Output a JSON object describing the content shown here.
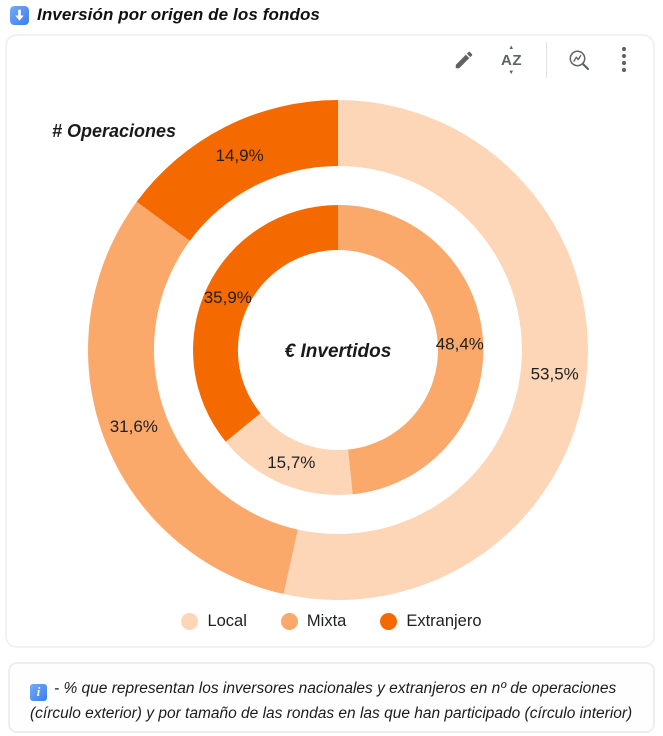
{
  "header": {
    "title": "Inversión por origen de los fondos",
    "icon": "blue-down-arrow"
  },
  "toolbar": {
    "edit_icon": "pencil-icon",
    "sort_icon_letters": "AZ",
    "zoom_icon": "magnifier-chart-icon",
    "more_icon": "kebab-dots-icon",
    "icon_color": "#5f6368"
  },
  "chart_data": {
    "type": "pie",
    "subtype": "nested-donut",
    "start_angle_deg": 0,
    "direction": "clockwise",
    "categories": [
      "Local",
      "Mixta",
      "Extranjero"
    ],
    "colors": {
      "Local": "#FDD6B7",
      "Mixta": "#FBA86B",
      "Extranjero": "#F56A00"
    },
    "label_color": "#212121",
    "rings": [
      {
        "name": "# Operaciones",
        "position": "outer",
        "segments": [
          {
            "category": "Local",
            "value": 53.5,
            "label": "53,5%"
          },
          {
            "category": "Mixta",
            "value": 31.6,
            "label": "31,6%"
          },
          {
            "category": "Extranjero",
            "value": 14.9,
            "label": "14,9%"
          }
        ]
      },
      {
        "name": "€ Invertidos",
        "position": "inner",
        "segments": [
          {
            "category": "Mixta",
            "value": 48.4,
            "label": "48,4%"
          },
          {
            "category": "Local",
            "value": 15.7,
            "label": "15,7%"
          },
          {
            "category": "Extranjero",
            "value": 35.9,
            "label": "35,9%"
          }
        ]
      }
    ],
    "legend_position": "bottom",
    "grid": false
  },
  "legend": {
    "items": [
      {
        "label": "Local",
        "color": "#FDD6B7"
      },
      {
        "label": "Mixta",
        "color": "#FBA86B"
      },
      {
        "label": "Extranjero",
        "color": "#F56A00"
      }
    ]
  },
  "footnote": {
    "icon": "blue-info-i",
    "line1": "- % que representan los inversores nacionales y extranjeros en nº de operaciones",
    "line2": "(círculo exterior) y por tamaño de las rondas en las que han participado (círculo interior)"
  }
}
